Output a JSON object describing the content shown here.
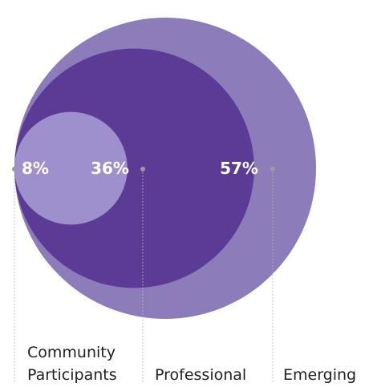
{
  "chart_data": {
    "type": "nested-bubble",
    "unit": "%",
    "categories": [
      "Community Participants",
      "Professional",
      "Emerging"
    ],
    "values": [
      8,
      36,
      57
    ],
    "value_labels": [
      "8%",
      "36%",
      "57%"
    ],
    "category_labels": [
      [
        "Community",
        "Participants"
      ],
      [
        "Professional"
      ],
      [
        "Emerging"
      ]
    ],
    "colors": [
      "#9e8fcd",
      "#5b3b96",
      "#8d7cba"
    ],
    "legend": "bottom"
  }
}
